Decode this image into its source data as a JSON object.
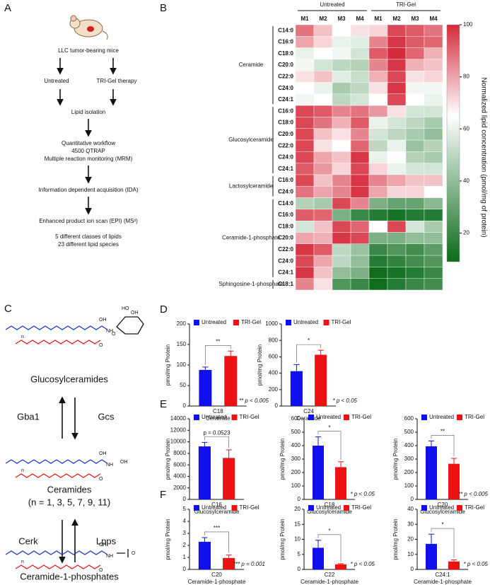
{
  "flowchart": {
    "label": "A",
    "steps": [
      "LLC tumor-bearing mice",
      "Untreated",
      "TRI-Gel therapy",
      "Lipid isolation",
      "Quantitative workflow",
      "4500 QTRAP",
      "Multiple reaction monitoring (MRM)",
      "Information dependent acquisition (IDA)",
      "Enhanced product ion scan (EPI) (MS²)",
      "5 different classes of lipids",
      "23 different lipid species"
    ]
  },
  "pathway": {
    "label": "C",
    "compounds": [
      "Glucosylceramides",
      "Ceramides",
      "(n = 1, 3, 5, 7, 9, 11)",
      "Ceramide-1-phosphates"
    ],
    "enzymes": [
      "Gba1",
      "Gcs",
      "Cerk",
      "Lpps"
    ],
    "atom_labels": [
      "OH",
      "NH",
      "O",
      "n",
      "HO"
    ]
  },
  "chart_data": [
    {
      "type": "heatmap",
      "panel": "B",
      "column_groups": [
        {
          "name": "Untreated",
          "columns": [
            "M1",
            "M2",
            "M3",
            "M4"
          ]
        },
        {
          "name": "TRI-Gel",
          "columns": [
            "M1",
            "M2",
            "M3",
            "M4"
          ]
        }
      ],
      "row_groups": [
        {
          "name": "Ceramide",
          "rows": [
            "C14:0",
            "C16:0",
            "C18:0",
            "C20:0",
            "C22:0",
            "C24:0",
            "C24:1"
          ],
          "values": [
            [
              88,
              75,
              65,
              70,
              72,
              95,
              92,
              88
            ],
            [
              80,
              72,
              60,
              58,
              85,
              98,
              92,
              90
            ],
            [
              60,
              65,
              62,
              55,
              92,
              100,
              90,
              78
            ],
            [
              62,
              55,
              50,
              48,
              85,
              98,
              78,
              75
            ],
            [
              70,
              75,
              58,
              52,
              78,
              95,
              70,
              72
            ],
            [
              65,
              60,
              45,
              50,
              70,
              98,
              62,
              62
            ],
            [
              62,
              65,
              50,
              55,
              65,
              95,
              65,
              60
            ]
          ]
        },
        {
          "name": "Glucosylceramide",
          "rows": [
            "C16:0",
            "C18:0",
            "C20:0",
            "C22:0",
            "C24:0",
            "C24:1"
          ],
          "values": [
            [
              95,
              92,
              85,
              88,
              82,
              70,
              55,
              55
            ],
            [
              95,
              88,
              78,
              92,
              60,
              55,
              50,
              45
            ],
            [
              95,
              75,
              70,
              85,
              55,
              50,
              45,
              40
            ],
            [
              95,
              70,
              65,
              90,
              50,
              60,
              42,
              48
            ],
            [
              95,
              80,
              75,
              98,
              60,
              65,
              48,
              45
            ],
            [
              92,
              82,
              72,
              95,
              72,
              60,
              55,
              55
            ]
          ]
        },
        {
          "name": "Lactosylceramide",
          "rows": [
            "C16:0",
            "C24:0"
          ],
          "values": [
            [
              95,
              75,
              85,
              98,
              85,
              80,
              75,
              75
            ],
            [
              88,
              80,
              85,
              98,
              80,
              72,
              72,
              65
            ]
          ]
        },
        {
          "name": "Ceramide-1-phosphate",
          "rows": [
            "C14:0",
            "C16:0",
            "C18:0",
            "C20:0",
            "C22:0",
            "C24:0",
            "C24:1"
          ],
          "values": [
            [
              48,
              45,
              95,
              85,
              35,
              30,
              30,
              38
            ],
            [
              92,
              90,
              35,
              20,
              15,
              12,
              15,
              15
            ],
            [
              55,
              75,
              95,
              90,
              65,
              95,
              55,
              45
            ],
            [
              80,
              78,
              98,
              95,
              35,
              35,
              40,
              40
            ],
            [
              98,
              92,
              50,
              42,
              20,
              25,
              22,
              28
            ],
            [
              95,
              80,
              50,
              40,
              15,
              18,
              22,
              25
            ],
            [
              98,
              75,
              40,
              35,
              10,
              12,
              15,
              20
            ]
          ]
        },
        {
          "name": "Sphingosine-1-phosphate",
          "rows": [
            "C18:1"
          ],
          "values": [
            [
              85,
              70,
              25,
              20,
              10,
              15,
              20,
              22
            ]
          ]
        }
      ],
      "zlim": [
        9,
        100
      ],
      "zticks": [
        20,
        40,
        60,
        80,
        100
      ],
      "color_stops": [
        9,
        65,
        100
      ],
      "colors": [
        "#0a6b1a",
        "#ffffff",
        "#d42a3a"
      ],
      "colorbar_label": "Normalized lipid concentration (pmol/mg of protein)"
    },
    {
      "type": "bar",
      "panel": "D",
      "ylabel": "pmol/mg Protein",
      "ylim": [
        0,
        200
      ],
      "yticks": [
        0,
        50,
        100,
        150,
        200
      ],
      "series": [
        {
          "name": "Untreated",
          "color": "#1010ee",
          "values": [
            88
          ],
          "errors": [
            7
          ]
        },
        {
          "name": "TRI-Gel",
          "color": "#ee1111",
          "values": [
            122
          ],
          "errors": [
            12
          ]
        }
      ],
      "significance": "**",
      "p_note": "** p < 0.005",
      "xlabel": [
        "C18",
        "Ceramide"
      ]
    },
    {
      "type": "bar",
      "ylabel": "pmol/mg Protein",
      "ylim": [
        0,
        1000
      ],
      "yticks": [
        0,
        200,
        400,
        600,
        800,
        1000
      ],
      "series": [
        {
          "name": "Untreated",
          "color": "#1010ee",
          "values": [
            425
          ],
          "errors": [
            80
          ]
        },
        {
          "name": "TRI-Gel",
          "color": "#ee1111",
          "values": [
            625
          ],
          "errors": [
            55
          ]
        }
      ],
      "significance": "*",
      "p_note": "* p < 0.05",
      "xlabel": [
        "C24",
        "Ceramide"
      ]
    },
    {
      "type": "bar",
      "panel": "E",
      "ylabel": "pmol/mg Protein",
      "ylim": [
        0,
        14000
      ],
      "yticks": [
        0,
        2000,
        4000,
        6000,
        8000,
        10000,
        12000,
        14000
      ],
      "series": [
        {
          "name": "Untreated",
          "color": "#1010ee",
          "values": [
            9200
          ],
          "errors": [
            700
          ]
        },
        {
          "name": "TRI-Gel",
          "color": "#ee1111",
          "values": [
            7200
          ],
          "errors": [
            1400
          ]
        }
      ],
      "significance": "p = 0.0523",
      "xlabel": [
        "C16",
        "Glucosylceramide"
      ]
    },
    {
      "type": "bar",
      "ylabel": "pmol/mg Protein",
      "ylim": [
        0,
        600
      ],
      "yticks": [
        0,
        100,
        200,
        300,
        400,
        500,
        600
      ],
      "series": [
        {
          "name": "Untreated",
          "color": "#1010ee",
          "values": [
            400
          ],
          "errors": [
            65
          ]
        },
        {
          "name": "TRI-Gel",
          "color": "#ee1111",
          "values": [
            240
          ],
          "errors": [
            40
          ]
        }
      ],
      "significance": "*",
      "p_note": "* p < 0.05",
      "xlabel": [
        "C18",
        "Glucosylceramide"
      ]
    },
    {
      "type": "bar",
      "ylabel": "pmol/mg Protein",
      "ylim": [
        0,
        600
      ],
      "yticks": [
        0,
        100,
        200,
        300,
        400,
        500,
        600
      ],
      "series": [
        {
          "name": "Untreated",
          "color": "#1010ee",
          "values": [
            395
          ],
          "errors": [
            40
          ]
        },
        {
          "name": "TRI-Gel",
          "color": "#ee1111",
          "values": [
            265
          ],
          "errors": [
            40
          ]
        }
      ],
      "significance": "**",
      "p_note": "** p < 0.005",
      "xlabel": [
        "C20",
        "Glucosylceramide"
      ]
    },
    {
      "type": "bar",
      "panel": "F",
      "ylabel": "pmol/mg Protein",
      "ylim": [
        0,
        5
      ],
      "yticks": [
        0,
        1,
        2,
        3,
        4,
        5
      ],
      "series": [
        {
          "name": "Untreated",
          "color": "#1010ee",
          "values": [
            2.3
          ],
          "errors": [
            0.35
          ]
        },
        {
          "name": "TRI-Gel",
          "color": "#ee1111",
          "values": [
            0.95
          ],
          "errors": [
            0.25
          ]
        }
      ],
      "significance": "***",
      "p_note": "*** p = 0.001",
      "xlabel": [
        "C20",
        "Ceramide-1-phosphate"
      ]
    },
    {
      "type": "bar",
      "ylabel": "pmol/mg Protein",
      "ylim": [
        0,
        20
      ],
      "yticks": [
        0,
        5,
        10,
        15,
        20
      ],
      "series": [
        {
          "name": "Untreated",
          "color": "#1010ee",
          "values": [
            7.2
          ],
          "errors": [
            2.5
          ]
        },
        {
          "name": "TRI-Gel",
          "color": "#ee1111",
          "values": [
            1.7
          ],
          "errors": [
            0.2
          ]
        }
      ],
      "significance": "*",
      "p_note": "* p < 0.05",
      "xlabel": [
        "C22",
        "Ceramide-1-phosphate"
      ]
    },
    {
      "type": "bar",
      "ylabel": "pmol/mg Protein",
      "ylim": [
        0,
        40
      ],
      "yticks": [
        0,
        10,
        20,
        30,
        40
      ],
      "series": [
        {
          "name": "Untreated",
          "color": "#1010ee",
          "values": [
            17
          ],
          "errors": [
            6.5
          ]
        },
        {
          "name": "TRI-Gel",
          "color": "#ee1111",
          "values": [
            5.3
          ],
          "errors": [
            1
          ]
        }
      ],
      "significance": "*",
      "p_note": "* p < 0.05",
      "xlabel": [
        "C24:1",
        "Ceramide-1-phosphate"
      ]
    }
  ]
}
